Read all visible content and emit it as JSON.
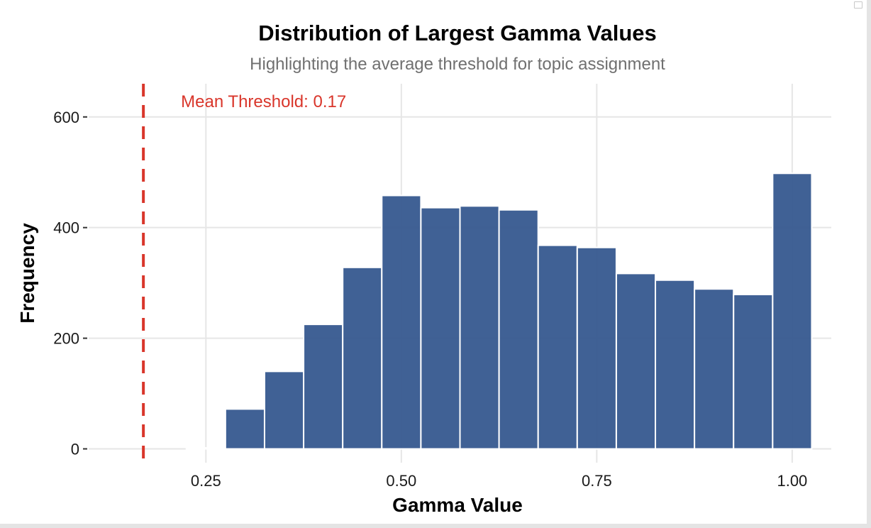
{
  "chart_data": {
    "type": "bar",
    "title": "Distribution of Largest Gamma Values",
    "subtitle": "Highlighting the average threshold for topic assignment",
    "xlabel": "Gamma Value",
    "ylabel": "Frequency",
    "xlim": [
      0.1,
      1.05
    ],
    "ylim": [
      -25,
      660
    ],
    "x_ticks": [
      0.25,
      0.5,
      0.75,
      1.0
    ],
    "x_tick_labels": [
      "0.25",
      "0.50",
      "0.75",
      "1.00"
    ],
    "y_ticks": [
      0,
      200,
      400,
      600
    ],
    "y_tick_labels": [
      "0",
      "200",
      "400",
      "600"
    ],
    "bin_width": 0.05,
    "bin_centers": [
      0.25,
      0.3,
      0.35,
      0.4,
      0.45,
      0.5,
      0.55,
      0.6,
      0.65,
      0.7,
      0.75,
      0.8,
      0.85,
      0.9,
      0.95,
      1.0
    ],
    "values": [
      2,
      72,
      140,
      225,
      328,
      458,
      436,
      439,
      432,
      368,
      364,
      317,
      305,
      289,
      279,
      498
    ],
    "grid": true,
    "threshold": {
      "value": 0.17,
      "label": "Mean Threshold: 0.17"
    },
    "colors": {
      "bar_fill": "#36598f",
      "bar_stroke": "#ffffff",
      "threshold": "#d9362b",
      "grid": "#e6e6e6",
      "title": "#000000",
      "subtitle": "#707070"
    }
  }
}
